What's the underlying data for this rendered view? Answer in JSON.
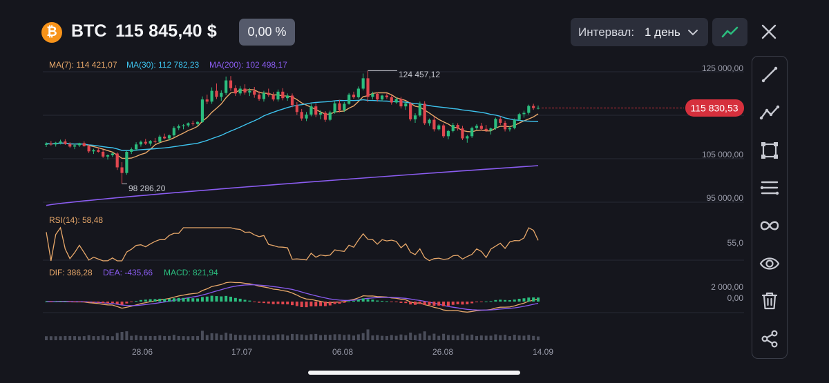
{
  "header": {
    "coin_icon": "bitcoin-icon",
    "coin_glyph": "₿",
    "symbol": "BTC",
    "price": "115 845,40 $",
    "change": "0,00 %",
    "interval_label": "Интервал:",
    "interval_value": "1 день",
    "colors": {
      "coin": "#f7931a",
      "up": "#2bbd7e",
      "down": "#e0474f"
    }
  },
  "toolbar": {
    "items": [
      {
        "name": "trend-line-icon"
      },
      {
        "name": "polyline-icon"
      },
      {
        "name": "rectangle-icon"
      },
      {
        "name": "fib-levels-icon"
      },
      {
        "name": "infinity-icon"
      },
      {
        "name": "eye-icon"
      },
      {
        "name": "trash-icon"
      },
      {
        "name": "share-icon"
      }
    ]
  },
  "chart_data": {
    "type": "candlestick",
    "symbol": "BTC",
    "interval": "1 день",
    "ma_legend": [
      {
        "label": "MA(7): 114 421,07",
        "color": "#e8a86a"
      },
      {
        "label": "MA(30): 112 782,23",
        "color": "#3ec4ef"
      },
      {
        "label": "MA(200): 102 498,17",
        "color": "#8a5cf0"
      }
    ],
    "y_ticks": [
      "125 000,00",
      "105 000,00",
      "95 000,00"
    ],
    "y_tick_values": [
      125000,
      105000,
      95000
    ],
    "current_price_label": "115 830,53",
    "current_price": 115830.53,
    "max_label": "124 457,12",
    "max_value": 124457.12,
    "min_label": "98 286,20",
    "min_value": 98286.2,
    "x_ticks": [
      "28.06",
      "17.07",
      "06.08",
      "26.08",
      "14.09"
    ],
    "candles": [
      [
        107300,
        107900,
        106800,
        107600
      ],
      [
        107600,
        108200,
        107100,
        107400
      ],
      [
        107400,
        108000,
        106900,
        107800
      ],
      [
        107800,
        108500,
        107400,
        108100
      ],
      [
        108100,
        108600,
        107300,
        107500
      ],
      [
        107500,
        107900,
        106600,
        106900
      ],
      [
        106900,
        107500,
        106300,
        107200
      ],
      [
        107200,
        107800,
        106800,
        107700
      ],
      [
        107700,
        108100,
        106900,
        107000
      ],
      [
        107000,
        107400,
        105400,
        105800
      ],
      [
        105800,
        106400,
        105200,
        106100
      ],
      [
        106100,
        106700,
        105500,
        105700
      ],
      [
        105700,
        106200,
        104300,
        104600
      ],
      [
        104600,
        105100,
        103900,
        104900
      ],
      [
        104900,
        105600,
        104500,
        105300
      ],
      [
        105300,
        105600,
        101500,
        102100
      ],
      [
        102100,
        103300,
        98286,
        100800
      ],
      [
        100800,
        106000,
        100400,
        105700
      ],
      [
        105700,
        106700,
        105200,
        106300
      ],
      [
        106300,
        107900,
        105900,
        107400
      ],
      [
        107400,
        108300,
        106900,
        108000
      ],
      [
        108000,
        108700,
        107300,
        107600
      ],
      [
        107600,
        108400,
        107100,
        108200
      ],
      [
        108200,
        108900,
        107600,
        108000
      ],
      [
        108000,
        109600,
        107800,
        109200
      ],
      [
        109200,
        109900,
        108600,
        108800
      ],
      [
        108800,
        109700,
        108300,
        109500
      ],
      [
        109500,
        111600,
        109200,
        111200
      ],
      [
        111200,
        112000,
        110700,
        111600
      ],
      [
        111600,
        112100,
        110900,
        111800
      ],
      [
        111800,
        112500,
        111400,
        112300
      ],
      [
        112300,
        112900,
        111700,
        112100
      ],
      [
        112100,
        112800,
        111500,
        112600
      ],
      [
        112600,
        118500,
        112400,
        117800
      ],
      [
        117800,
        118900,
        116700,
        117300
      ],
      [
        117300,
        120600,
        116800,
        119800
      ],
      [
        119800,
        121500,
        117900,
        118400
      ],
      [
        118400,
        119900,
        117500,
        119300
      ],
      [
        119300,
        123100,
        118800,
        122200
      ],
      [
        122200,
        123200,
        119800,
        120400
      ],
      [
        120400,
        121100,
        118600,
        119200
      ],
      [
        119200,
        120900,
        118700,
        120300
      ],
      [
        120300,
        121300,
        118900,
        119400
      ],
      [
        119400,
        120400,
        118600,
        119800
      ],
      [
        119800,
        120700,
        118200,
        118900
      ],
      [
        118900,
        119700,
        117500,
        117900
      ],
      [
        117900,
        119800,
        117300,
        119300
      ],
      [
        119300,
        120300,
        118400,
        118800
      ],
      [
        118800,
        119500,
        117400,
        117800
      ],
      [
        117800,
        120100,
        117300,
        119600
      ],
      [
        119600,
        120400,
        117600,
        118100
      ],
      [
        118100,
        119200,
        117500,
        118700
      ],
      [
        118700,
        119200,
        116000,
        116500
      ],
      [
        116500,
        117200,
        114200,
        114900
      ],
      [
        114900,
        115600,
        112900,
        113400
      ],
      [
        113400,
        114900,
        112800,
        114300
      ],
      [
        114300,
        116800,
        113900,
        116200
      ],
      [
        116200,
        116900,
        113700,
        114300
      ],
      [
        114300,
        115300,
        113200,
        114700
      ],
      [
        114700,
        115100,
        112600,
        113100
      ],
      [
        113100,
        115200,
        112800,
        114800
      ],
      [
        114800,
        117400,
        114500,
        116900
      ],
      [
        116900,
        117700,
        114800,
        115300
      ],
      [
        115300,
        117200,
        114900,
        116800
      ],
      [
        116800,
        119300,
        116600,
        118900
      ],
      [
        118900,
        119600,
        117900,
        118300
      ],
      [
        118300,
        120800,
        118000,
        120300
      ],
      [
        120300,
        123800,
        119900,
        122700
      ],
      [
        122700,
        124457,
        117200,
        118400
      ],
      [
        118400,
        119600,
        117800,
        119100
      ],
      [
        119100,
        119500,
        117300,
        117800
      ],
      [
        117800,
        118900,
        117400,
        118700
      ],
      [
        118700,
        119200,
        117900,
        118300
      ],
      [
        118300,
        118800,
        116600,
        117100
      ],
      [
        117100,
        118300,
        116800,
        117900
      ],
      [
        117900,
        118400,
        115700,
        116200
      ],
      [
        116200,
        117400,
        115400,
        116900
      ],
      [
        116900,
        117200,
        112800,
        113200
      ],
      [
        113200,
        114600,
        112400,
        114100
      ],
      [
        114100,
        117300,
        113800,
        116800
      ],
      [
        116800,
        117400,
        111900,
        112300
      ],
      [
        112300,
        113400,
        111700,
        113100
      ],
      [
        113100,
        113800,
        110400,
        110900
      ],
      [
        110900,
        112100,
        110600,
        111800
      ],
      [
        111800,
        112200,
        108900,
        109300
      ],
      [
        109300,
        110800,
        108600,
        110500
      ],
      [
        110500,
        112400,
        110200,
        111900
      ],
      [
        111900,
        112300,
        110600,
        111100
      ],
      [
        111100,
        111700,
        108400,
        108800
      ],
      [
        108800,
        109600,
        107800,
        109300
      ],
      [
        109300,
        111500,
        108900,
        111200
      ],
      [
        111200,
        112100,
        110800,
        111700
      ],
      [
        111700,
        112400,
        110600,
        111000
      ],
      [
        111000,
        111900,
        110300,
        110600
      ],
      [
        110600,
        111300,
        109700,
        111100
      ],
      [
        111100,
        113600,
        110800,
        113300
      ],
      [
        113300,
        113900,
        111900,
        112400
      ],
      [
        112400,
        112900,
        110400,
        110900
      ],
      [
        110900,
        111600,
        110400,
        111200
      ],
      [
        111200,
        113400,
        110900,
        113100
      ],
      [
        113100,
        114700,
        112900,
        114400
      ],
      [
        114400,
        115200,
        113600,
        114700
      ],
      [
        114700,
        116600,
        114300,
        116300
      ],
      [
        116300,
        116800,
        115400,
        115800
      ],
      [
        115800,
        116400,
        115500,
        115830
      ]
    ],
    "indicators": {
      "rsi": {
        "label": "RSI(14): 58,48",
        "color": "#e8a86a",
        "value": 58.48,
        "level_label": "55,0"
      },
      "macd": {
        "dif_label": "DIF: 386,28",
        "dif_color": "#e8a86a",
        "dea_label": "DEA: -435,66",
        "dea_color": "#8a5cf0",
        "macd_label": "MACD: 821,94",
        "macd_color": "#2bbd7e",
        "y_ticks": [
          "2 000,00",
          "0,00"
        ]
      }
    }
  }
}
